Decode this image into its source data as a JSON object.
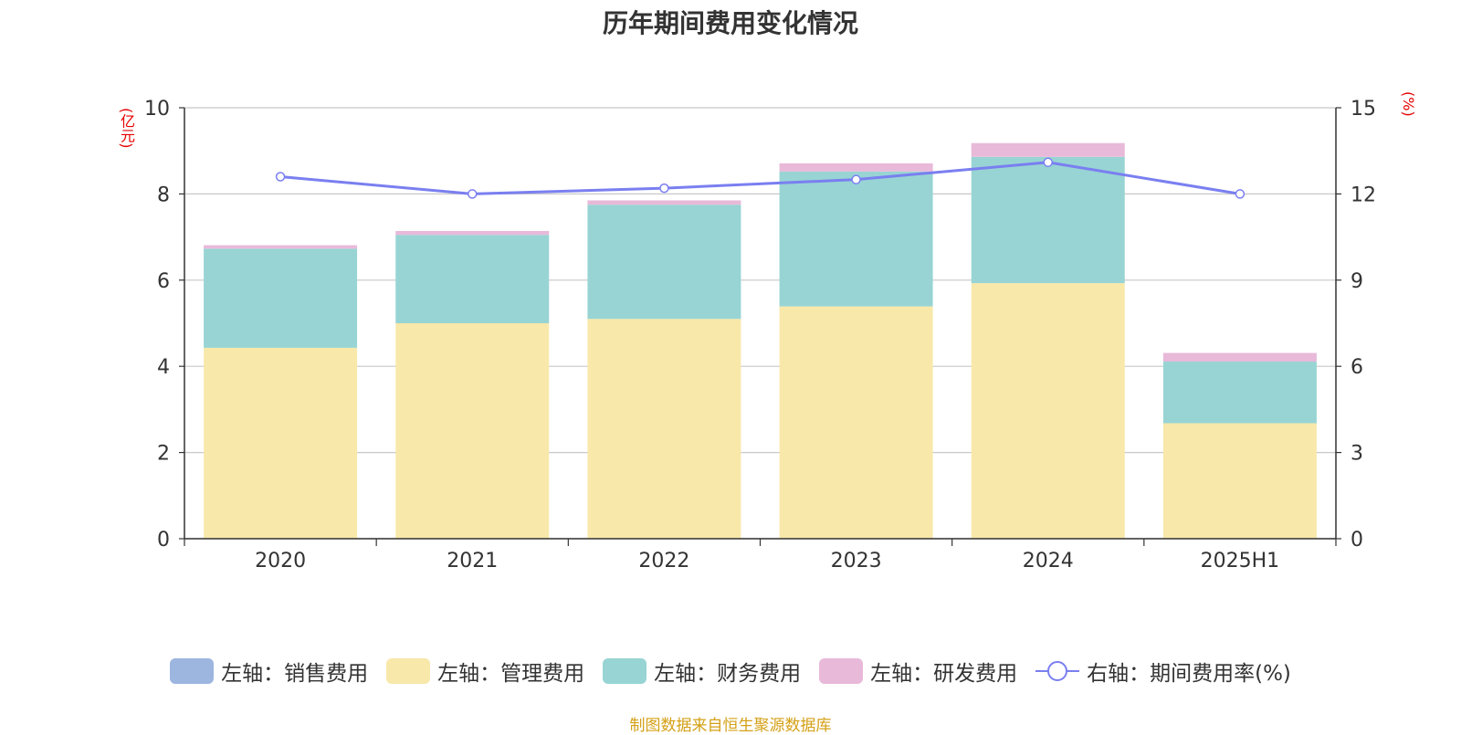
{
  "chart_data": {
    "type": "bar",
    "title": "历年期间费用变化情况",
    "categories": [
      "2020",
      "2021",
      "2022",
      "2023",
      "2024",
      "2025H1"
    ],
    "y_left": {
      "label": "(亿元)",
      "ylim": [
        0,
        10
      ],
      "ticks": [
        0,
        2,
        4,
        6,
        8,
        10
      ]
    },
    "y_right": {
      "label": "(%)",
      "ylim": [
        0,
        15
      ],
      "ticks": [
        0,
        3,
        6,
        9,
        12,
        15
      ]
    },
    "grid": true,
    "legend_position": "bottom",
    "series": [
      {
        "name": "左轴：销售费用",
        "type": "bar",
        "axis": "left",
        "color": "#9db6e0",
        "values": [
          0,
          0,
          0,
          0,
          0,
          0
        ]
      },
      {
        "name": "左轴：管理费用",
        "type": "bar",
        "axis": "left",
        "color": "#f8e8aa",
        "values": [
          4.43,
          5.0,
          5.1,
          5.39,
          5.93,
          2.68
        ]
      },
      {
        "name": "左轴：财务费用",
        "type": "bar",
        "axis": "left",
        "color": "#98d4d4",
        "values": [
          2.3,
          2.05,
          2.65,
          3.13,
          2.93,
          1.43
        ]
      },
      {
        "name": "左轴：研发费用",
        "type": "bar",
        "axis": "left",
        "color": "#e8b9d9",
        "values": [
          0.08,
          0.09,
          0.1,
          0.19,
          0.32,
          0.2
        ]
      },
      {
        "name": "右轴：期间费用率(%)",
        "type": "line",
        "axis": "right",
        "color": "#7a7ff0",
        "values": [
          12.6,
          12.0,
          12.2,
          12.5,
          13.1,
          12.0
        ]
      }
    ]
  },
  "source": "制图数据来自恒生聚源数据库"
}
